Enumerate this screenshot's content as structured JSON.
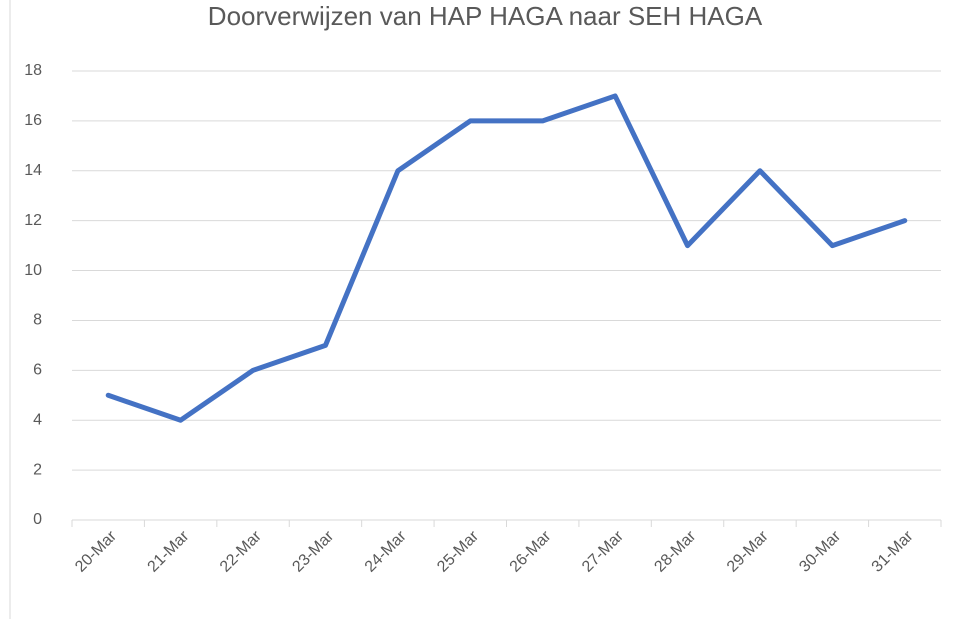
{
  "chart_data": {
    "type": "line",
    "title": "Doorverwijzen van HAP HAGA naar SEH HAGA",
    "categories": [
      "20-Mar",
      "21-Mar",
      "22-Mar",
      "23-Mar",
      "24-Mar",
      "25-Mar",
      "26-Mar",
      "27-Mar",
      "28-Mar",
      "29-Mar",
      "30-Mar",
      "31-Mar"
    ],
    "values": [
      5,
      4,
      6,
      7,
      14,
      16,
      16,
      17,
      11,
      14,
      11,
      12
    ],
    "color": "#4472c4",
    "ylim": [
      0,
      18
    ],
    "yticks": [
      0,
      2,
      4,
      6,
      8,
      10,
      12,
      14,
      16,
      18
    ],
    "grid": true
  }
}
